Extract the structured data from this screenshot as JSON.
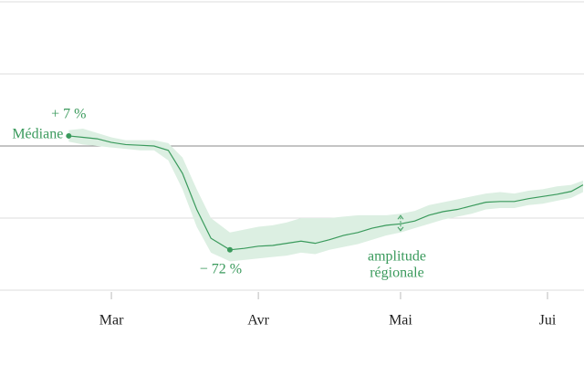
{
  "chart_data": {
    "type": "line",
    "x": [
      51,
      54,
      57,
      60,
      63,
      66,
      69,
      72,
      75,
      78,
      81,
      85,
      88,
      91,
      94,
      97,
      100,
      103,
      106,
      109,
      112,
      115,
      118,
      121,
      124,
      127,
      130,
      133,
      136,
      139,
      142,
      145,
      148,
      151,
      154,
      157,
      159.5
    ],
    "series": [
      {
        "name": "Médiane",
        "color": "#3a9a5c",
        "band_color": "#dcefe2",
        "values": [
          7,
          6,
          5,
          2.5,
          1,
          0.5,
          0,
          -3,
          -19,
          -44,
          -64,
          -72,
          -71,
          -69.5,
          -69,
          -67.5,
          -66,
          -67.5,
          -65,
          -62,
          -60,
          -57,
          -55,
          -54,
          -52,
          -48,
          -45.5,
          -44,
          -41.5,
          -39,
          -38.5,
          -38.5,
          -36.5,
          -35,
          -33.5,
          -31.5,
          -27
        ],
        "value_labels": [
          "+ 7 %",
          null,
          null,
          null,
          null,
          null,
          null,
          null,
          null,
          null,
          null,
          "− 72 %",
          null,
          null,
          null,
          null,
          null,
          null,
          null,
          null,
          null,
          null,
          null,
          null,
          null,
          null,
          null,
          null,
          null,
          null,
          null,
          null,
          null,
          null,
          null,
          null,
          null
        ],
        "band_upper": [
          11,
          12,
          9,
          6,
          4,
          4,
          4,
          2,
          -8,
          -30,
          -50,
          -60,
          -58,
          -56,
          -55,
          -53,
          -50,
          -50,
          -50,
          -49,
          -48,
          -48,
          -48,
          -47,
          -45,
          -41,
          -39,
          -37,
          -35,
          -33,
          -32,
          -33,
          -31,
          -30,
          -28,
          -27,
          -24
        ],
        "band_lower": [
          3,
          1,
          0,
          -1,
          -2,
          -3,
          -3,
          -10,
          -30,
          -56,
          -74,
          -80,
          -79,
          -78,
          -77,
          -76,
          -74,
          -75,
          -72,
          -70,
          -68,
          -65,
          -62,
          -60,
          -57,
          -54,
          -51,
          -49,
          -47,
          -44,
          -43,
          -43,
          -41,
          -40,
          -38,
          -36,
          -32
        ]
      }
    ],
    "annotations": {
      "amplitude": [
        "amplitude",
        "régionale"
      ]
    },
    "xlim": [
      36.5,
      159.7
    ],
    "xticks": [
      {
        "value": 60,
        "label": "Mar"
      },
      {
        "value": 91,
        "label": "Avr"
      },
      {
        "value": 121,
        "label": "Mai"
      },
      {
        "value": 152,
        "label": "Jui"
      }
    ],
    "ylim": [
      -100,
      100
    ],
    "yticks": [
      -100,
      -50,
      0,
      50,
      100
    ],
    "grid": true
  }
}
